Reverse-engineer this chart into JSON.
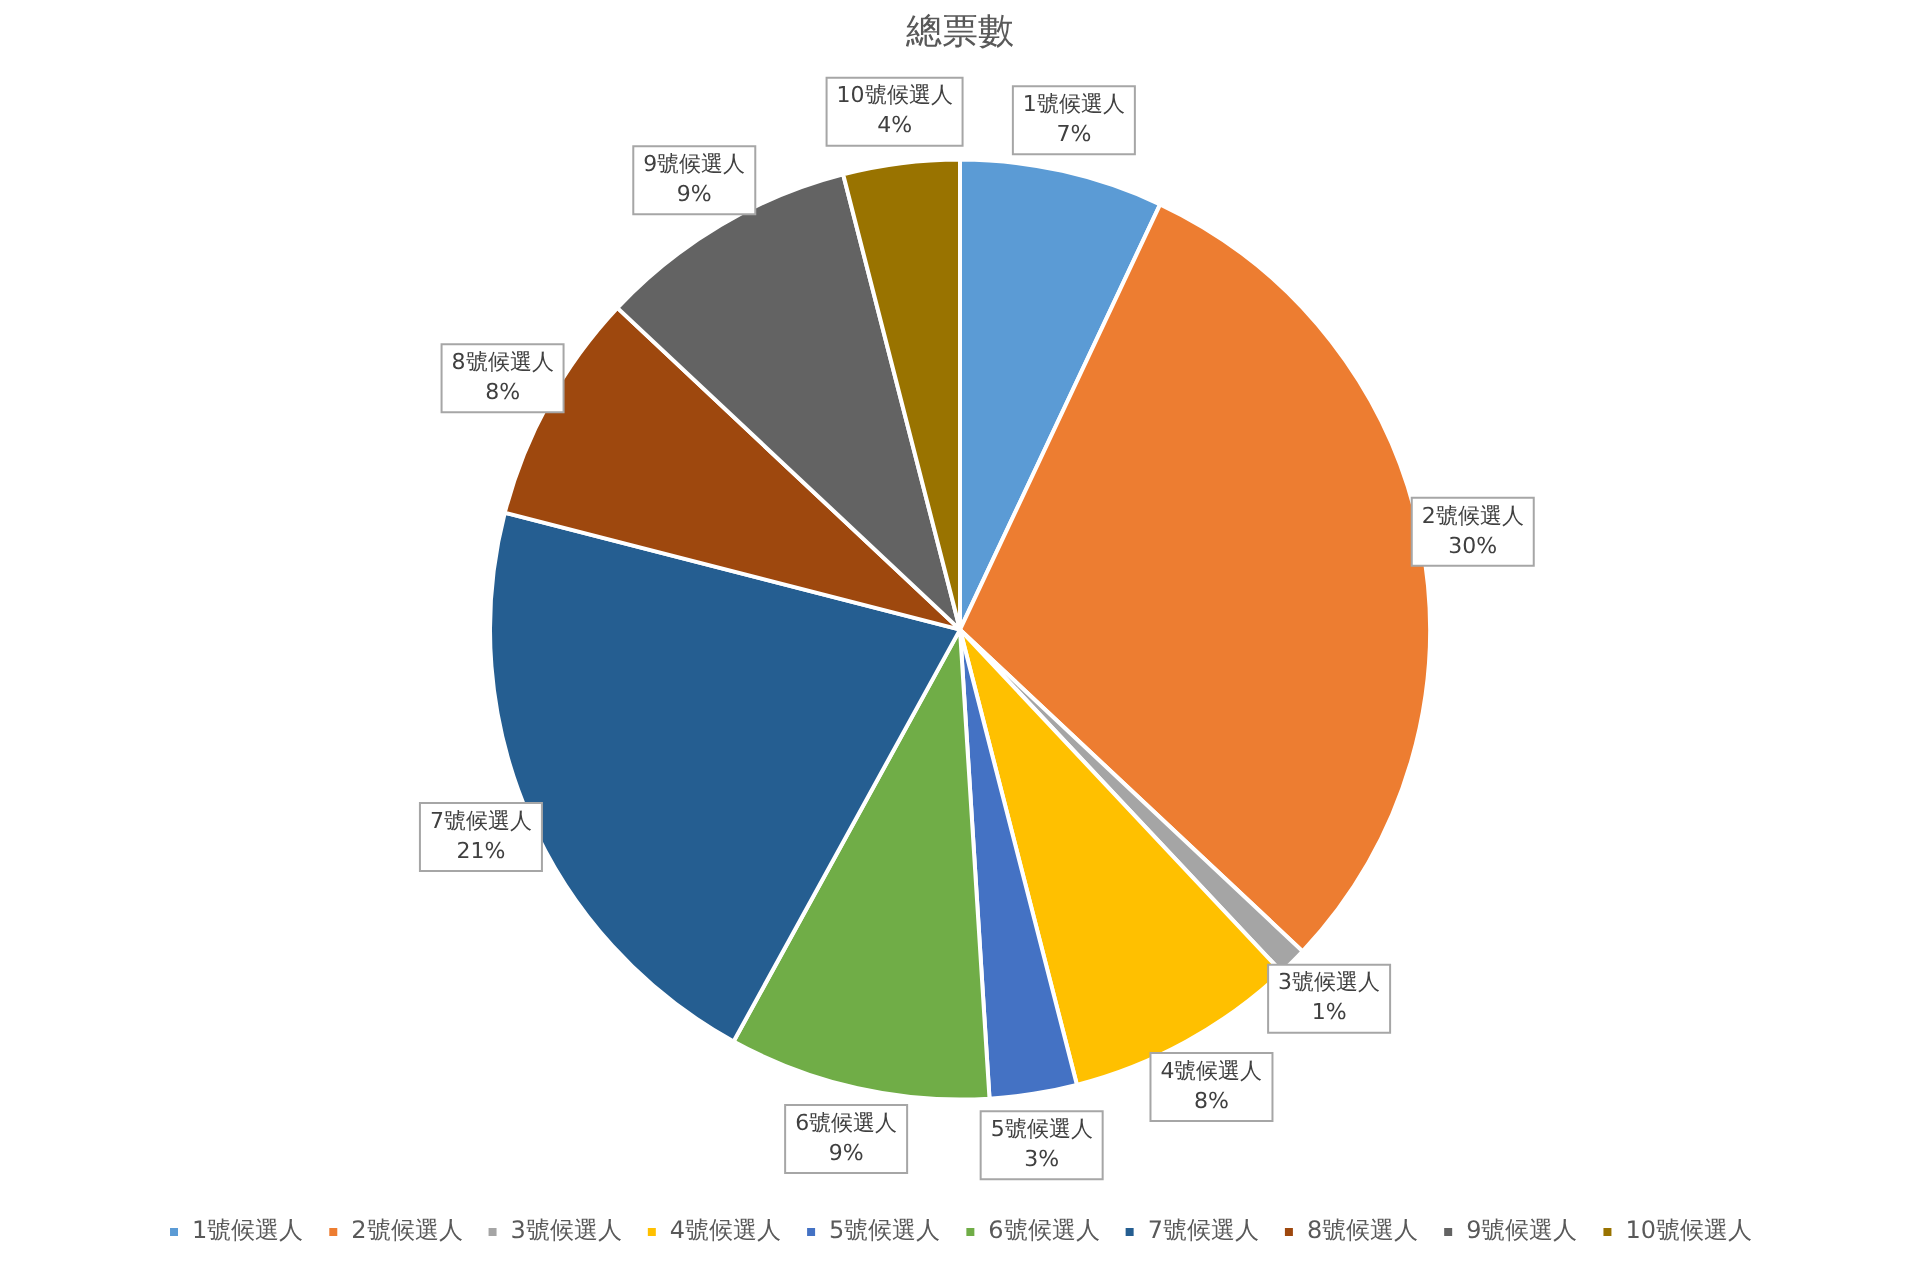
{
  "chart_data": {
    "type": "pie",
    "title": "總票數",
    "categories": [
      "1號候選人",
      "2號候選人",
      "3號候選人",
      "4號候選人",
      "5號候選人",
      "6號候選人",
      "7號候選人",
      "8號候選人",
      "9號候選人",
      "10號候選人"
    ],
    "values": [
      7,
      30,
      1,
      8,
      3,
      9,
      21,
      8,
      9,
      4
    ],
    "colors": [
      "#5b9bd5",
      "#ed7d31",
      "#a5a5a5",
      "#ffc000",
      "#4472c4",
      "#70ad47",
      "#255e91",
      "#9e480e",
      "#636363",
      "#997300"
    ],
    "value_labels": [
      "7%",
      "30%",
      "1%",
      "8%",
      "3%",
      "9%",
      "21%",
      "8%",
      "9%",
      "4%"
    ],
    "legend": "bottom"
  }
}
